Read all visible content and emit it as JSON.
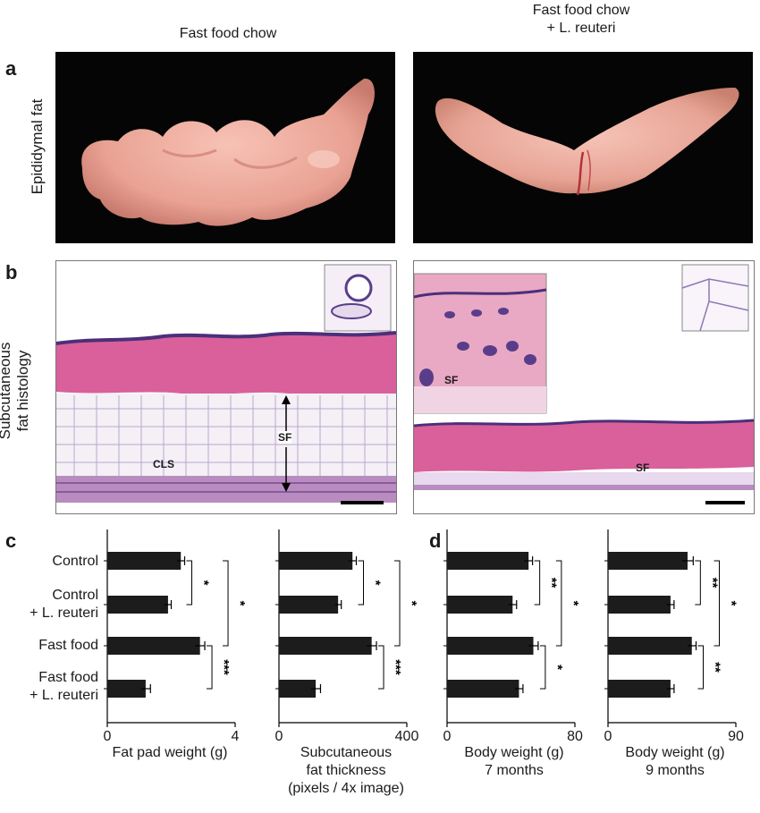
{
  "figure": {
    "col_title_left": "Fast food chow",
    "col_title_right_line1": "Fast food chow",
    "col_title_right_line2": "+ L. reuteri",
    "panel_a": "a",
    "panel_b": "b",
    "panel_c": "c",
    "panel_d": "d",
    "row_a_label": "Epididymal fat",
    "row_b_label_line1": "Subcutaneous",
    "row_b_label_line2": "fat histology",
    "histo_labels": {
      "cls": "CLS",
      "sf_left": "SF",
      "sf_right_inset": "SF",
      "sf_right": "SF"
    },
    "categories": [
      {
        "line1": "Control",
        "line2": ""
      },
      {
        "line1": "Control",
        "line2": "+ L. reuteri"
      },
      {
        "line1": "Fast food",
        "line2": ""
      },
      {
        "line1": "Fast food",
        "line2": "+ L. reuteri"
      }
    ],
    "colors": {
      "bar": "#1c1c1c",
      "photo_bg": "#050505",
      "tissue": "#f2b0a6",
      "histo_pink": "#d9609a",
      "histo_purple": "#5a3d8a"
    }
  },
  "chart_data": [
    {
      "type": "bar",
      "orientation": "horizontal",
      "categories": [
        "Control",
        "Control + L. reuteri",
        "Fast food",
        "Fast food + L. reuteri"
      ],
      "values": [
        2.3,
        1.9,
        2.9,
        1.2
      ],
      "errors": [
        0.12,
        0.1,
        0.15,
        0.15
      ],
      "xlim": [
        0,
        4
      ],
      "xticks": [
        "0",
        "4"
      ],
      "xlabel_lines": [
        "Fat pad weight (g)"
      ],
      "significance": [
        {
          "from": 0,
          "to": 1,
          "label": "*"
        },
        {
          "from": 0,
          "to": 2,
          "label": "*"
        },
        {
          "from": 2,
          "to": 3,
          "label": "***"
        }
      ]
    },
    {
      "type": "bar",
      "orientation": "horizontal",
      "categories": [
        "Control",
        "Control + L. reuteri",
        "Fast food",
        "Fast food + L. reuteri"
      ],
      "values": [
        230,
        185,
        290,
        115
      ],
      "errors": [
        12,
        10,
        15,
        15
      ],
      "xlim": [
        0,
        400
      ],
      "xticks": [
        "0",
        "400"
      ],
      "xlabel_lines": [
        "Subcutaneous",
        "fat thickness",
        "(pixels / 4x image)"
      ],
      "significance": [
        {
          "from": 0,
          "to": 1,
          "label": "*"
        },
        {
          "from": 0,
          "to": 2,
          "label": "*"
        },
        {
          "from": 2,
          "to": 3,
          "label": "***"
        }
      ]
    },
    {
      "type": "bar",
      "orientation": "horizontal",
      "categories": [
        "Control",
        "Control + L. reuteri",
        "Fast food",
        "Fast food + L. reuteri"
      ],
      "values": [
        51,
        41,
        54,
        45
      ],
      "errors": [
        2.5,
        2.5,
        3,
        2.5
      ],
      "xlim": [
        0,
        80
      ],
      "xticks": [
        "0",
        "80"
      ],
      "xlabel_lines": [
        "Body weight (g)",
        "7 months"
      ],
      "significance": [
        {
          "from": 0,
          "to": 1,
          "label": "**"
        },
        {
          "from": 0,
          "to": 2,
          "label": "*"
        },
        {
          "from": 2,
          "to": 3,
          "label": "*"
        }
      ]
    },
    {
      "type": "bar",
      "orientation": "horizontal",
      "categories": [
        "Control",
        "Control + L. reuteri",
        "Fast food",
        "Fast food + L. reuteri"
      ],
      "values": [
        56,
        44,
        59,
        44
      ],
      "errors": [
        4,
        2.5,
        3,
        2.5
      ],
      "xlim": [
        0,
        90
      ],
      "xticks": [
        "0",
        "90"
      ],
      "xlabel_lines": [
        "Body weight (g)",
        "9 months"
      ],
      "significance": [
        {
          "from": 0,
          "to": 1,
          "label": "**"
        },
        {
          "from": 0,
          "to": 2,
          "label": "*"
        },
        {
          "from": 2,
          "to": 3,
          "label": "**"
        }
      ]
    }
  ]
}
